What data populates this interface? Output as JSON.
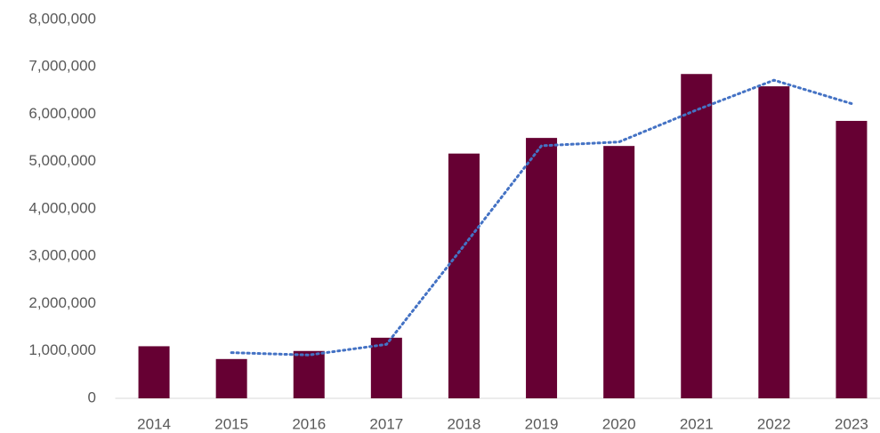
{
  "chart_data": {
    "type": "bar",
    "categories": [
      "2014",
      "2015",
      "2016",
      "2017",
      "2018",
      "2019",
      "2020",
      "2021",
      "2022",
      "2023"
    ],
    "values": [
      1100000,
      830000,
      1000000,
      1280000,
      5170000,
      5500000,
      5330000,
      6850000,
      6590000,
      5860000
    ],
    "color": "#660033",
    "trend": {
      "color": "#4472c4",
      "values": [
        null,
        965000,
        915000,
        1140000,
        3225000,
        5335000,
        5415000,
        6090000,
        6720000,
        6225000
      ]
    },
    "ylim": [
      0,
      8000000
    ],
    "yticks": [
      0,
      {
        "value": 1000000,
        "label": "1,000,000"
      },
      {
        "value": 2000000,
        "label": "2,000,000"
      },
      {
        "value": 3000000,
        "label": "3,000,000"
      },
      {
        "value": 4000000,
        "label": "4,000,000"
      },
      {
        "value": 5000000,
        "label": "5,000,000"
      },
      {
        "value": 6000000,
        "label": "6,000,000"
      },
      {
        "value": 7000000,
        "label": "7,000,000"
      },
      {
        "value": 8000000,
        "label": "8,000,000"
      }
    ],
    "grid": false
  }
}
